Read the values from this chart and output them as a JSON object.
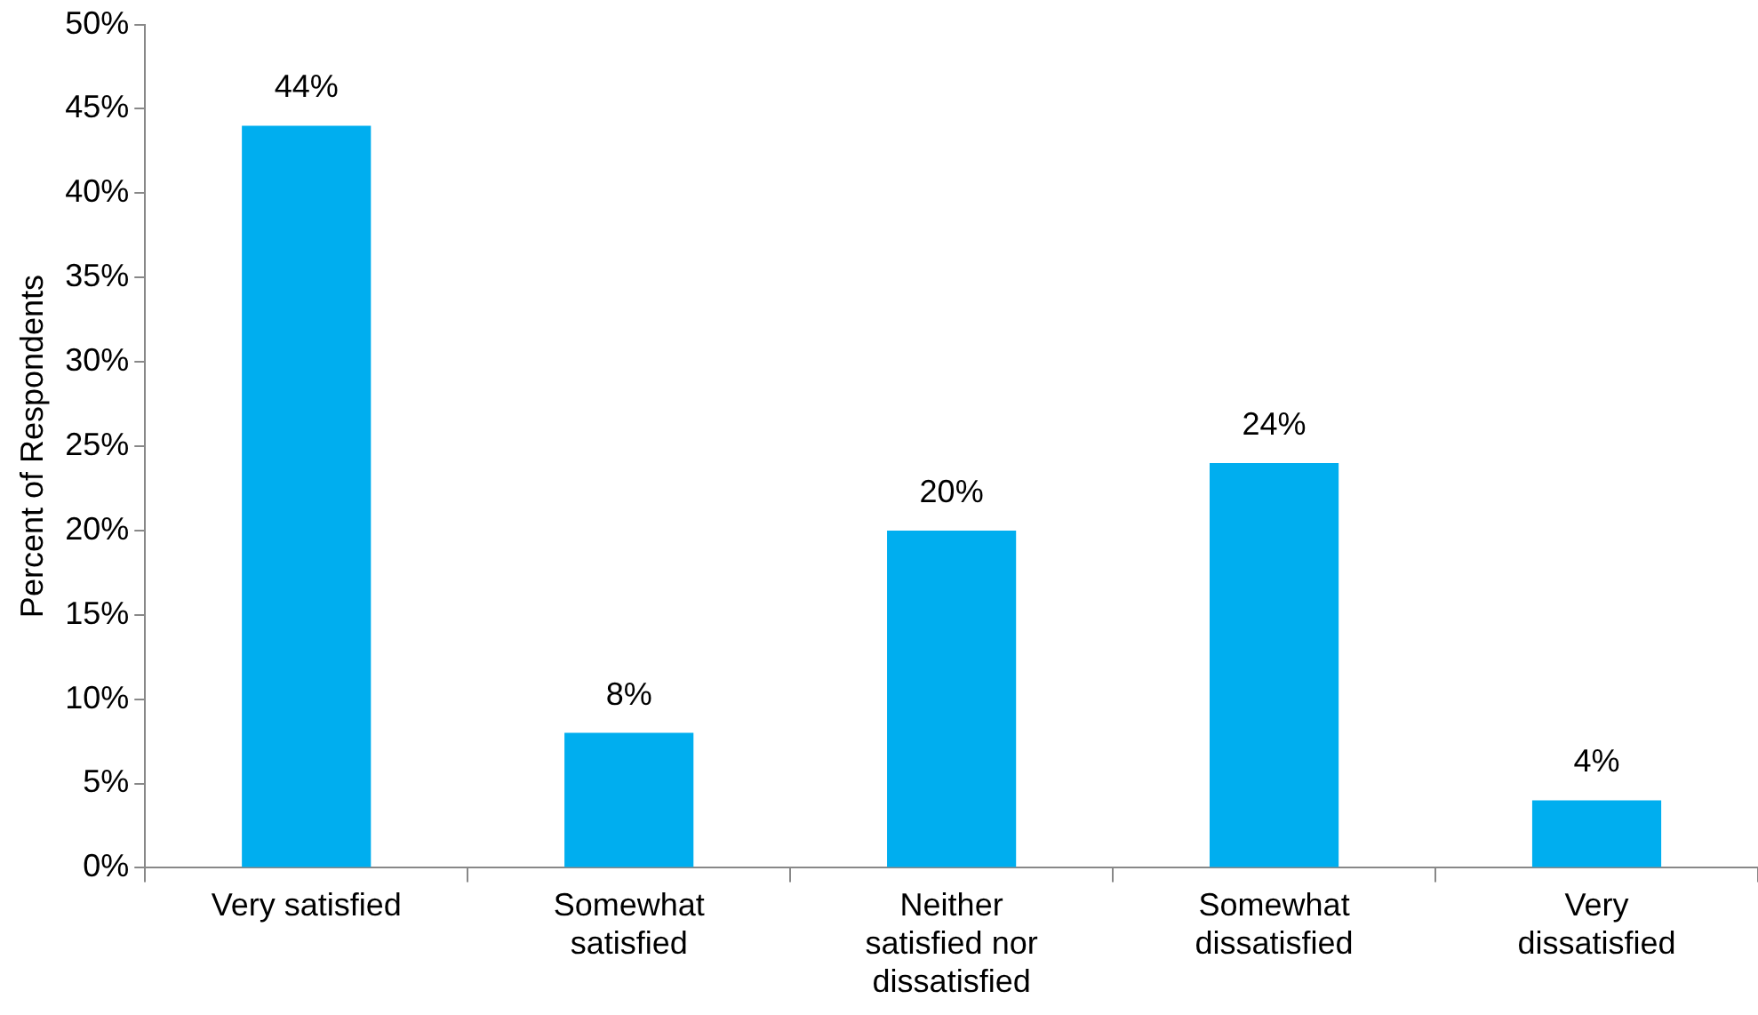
{
  "chart_data": {
    "type": "bar",
    "ylabel": "Percent of Respondents",
    "categories": [
      "Very satisfied",
      "Somewhat satisfied",
      "Neither satisfied nor dissatisfied",
      "Somewhat dissatisfied",
      "Very dissatisfied"
    ],
    "values": [
      44,
      8,
      20,
      24,
      4
    ],
    "color": "#00aeef",
    "value_labels": [
      "44%",
      "8%",
      "20%",
      "24%",
      "4%"
    ],
    "ylim": [
      0,
      50
    ],
    "yticks": [
      {
        "value": 0,
        "label": "0%"
      },
      {
        "value": 5,
        "label": "5%"
      },
      {
        "value": 10,
        "label": "10%"
      },
      {
        "value": 15,
        "label": "15%"
      },
      {
        "value": 20,
        "label": "20%"
      },
      {
        "value": 25,
        "label": "25%"
      },
      {
        "value": 30,
        "label": "30%"
      },
      {
        "value": 35,
        "label": "35%"
      },
      {
        "value": 40,
        "label": "40%"
      },
      {
        "value": 45,
        "label": "45%"
      },
      {
        "value": 50,
        "label": "50%"
      }
    ],
    "grid": false,
    "legend": false
  }
}
